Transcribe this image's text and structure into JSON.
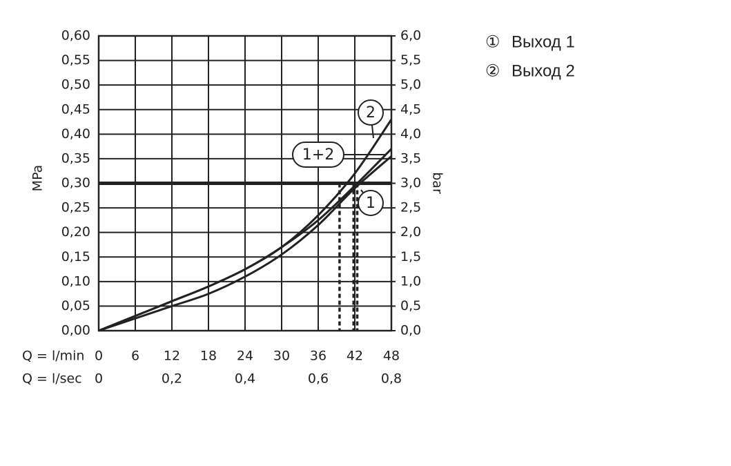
{
  "chart_data": {
    "type": "line",
    "ylabel": "MPa",
    "y2label": "bar",
    "xlabel": "Q = l/min",
    "x2label": "Q = l/sec",
    "x": [
      0,
      6,
      12,
      18,
      24,
      30,
      36,
      42,
      48
    ],
    "xlim": [
      0,
      48
    ],
    "xticks": [
      0,
      6,
      12,
      18,
      24,
      30,
      36,
      42,
      48
    ],
    "x2lim": [
      0,
      0.8
    ],
    "x2ticks": [
      {
        "value": 0,
        "label": "0"
      },
      {
        "value": 0.2,
        "label": "0,2"
      },
      {
        "value": 0.4,
        "label": "0,4"
      },
      {
        "value": 0.6,
        "label": "0,6"
      },
      {
        "value": 0.8,
        "label": "0,8"
      }
    ],
    "ylim": [
      0,
      0.6
    ],
    "yticks": [
      {
        "value": 0,
        "label": "0,00"
      },
      {
        "value": 0.05,
        "label": "0,05"
      },
      {
        "value": 0.1,
        "label": "0,10"
      },
      {
        "value": 0.15,
        "label": "0,15"
      },
      {
        "value": 0.2,
        "label": "0,20"
      },
      {
        "value": 0.25,
        "label": "0,25"
      },
      {
        "value": 0.3,
        "label": "0,30"
      },
      {
        "value": 0.35,
        "label": "0,35"
      },
      {
        "value": 0.4,
        "label": "0,40"
      },
      {
        "value": 0.45,
        "label": "0,45"
      },
      {
        "value": 0.5,
        "label": "0,50"
      },
      {
        "value": 0.55,
        "label": "0,55"
      },
      {
        "value": 0.6,
        "label": "0,60"
      }
    ],
    "y2lim": [
      0,
      6
    ],
    "y2ticks": [
      {
        "value": 0,
        "label": "0,0"
      },
      {
        "value": 0.5,
        "label": "0,5"
      },
      {
        "value": 1,
        "label": "1,0"
      },
      {
        "value": 1.5,
        "label": "1,5"
      },
      {
        "value": 2,
        "label": "2,0"
      },
      {
        "value": 2.5,
        "label": "2,5"
      },
      {
        "value": 3,
        "label": "3,0"
      },
      {
        "value": 3.5,
        "label": "3,5"
      },
      {
        "value": 4,
        "label": "4,0"
      },
      {
        "value": 4.5,
        "label": "4,5"
      },
      {
        "value": 5,
        "label": "5,0"
      },
      {
        "value": 5.5,
        "label": "5,5"
      },
      {
        "value": 6,
        "label": "6,0"
      }
    ],
    "grid": true,
    "reference_line": 0.3,
    "drop_lines": [
      39.5,
      41.8,
      42.4
    ],
    "series": [
      {
        "name": "2",
        "color": "#222222",
        "values": [
          0,
          0.03,
          0.06,
          0.09,
          0.125,
          0.17,
          0.235,
          0.32,
          0.43
        ]
      },
      {
        "name": "1+2",
        "color": "#222222",
        "values": [
          0,
          0.03,
          0.06,
          0.09,
          0.125,
          0.17,
          0.225,
          0.295,
          0.37
        ]
      },
      {
        "name": "1",
        "color": "#222222",
        "values": [
          0,
          0.025,
          0.05,
          0.075,
          0.11,
          0.155,
          0.215,
          0.29,
          0.355
        ]
      }
    ],
    "legend": [
      {
        "symbol": "①",
        "text": "Выход 1"
      },
      {
        "symbol": "②",
        "text": "Выход 2"
      }
    ]
  }
}
